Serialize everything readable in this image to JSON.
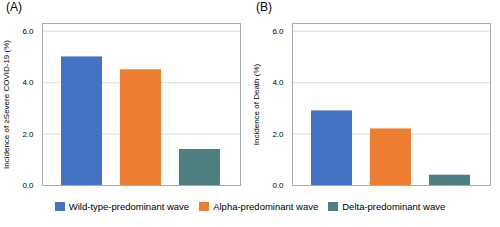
{
  "chart_data": [
    {
      "type": "bar",
      "title": "(A)",
      "ylabel": "Incidence of ≥Severe COVID-19 (%)",
      "categories": [
        "Wild-type-predominant wave",
        "Alpha-predominant wave",
        "Delta-predominant wave"
      ],
      "values": [
        5.0,
        4.5,
        1.4
      ],
      "colors": [
        "#4472C4",
        "#ED7D31",
        "#4E7F80"
      ],
      "ylim": [
        0,
        6.3
      ],
      "yticks": [
        0,
        2,
        4,
        6
      ],
      "grid": true,
      "tick_labels": "y",
      "legend": "bottom"
    },
    {
      "type": "bar",
      "title": "(B)",
      "ylabel": "Incidence of Death (%)",
      "categories": [
        "Wild-type-predominant wave",
        "Alpha-predominant wave",
        "Delta-predominant wave"
      ],
      "values": [
        2.9,
        2.2,
        0.4
      ],
      "colors": [
        "#4472C4",
        "#ED7D31",
        "#4E7F80"
      ],
      "ylim": [
        0,
        6.3
      ],
      "yticks": [
        0,
        2,
        4,
        6
      ],
      "grid": true,
      "tick_labels": "y",
      "legend": "bottom"
    }
  ]
}
